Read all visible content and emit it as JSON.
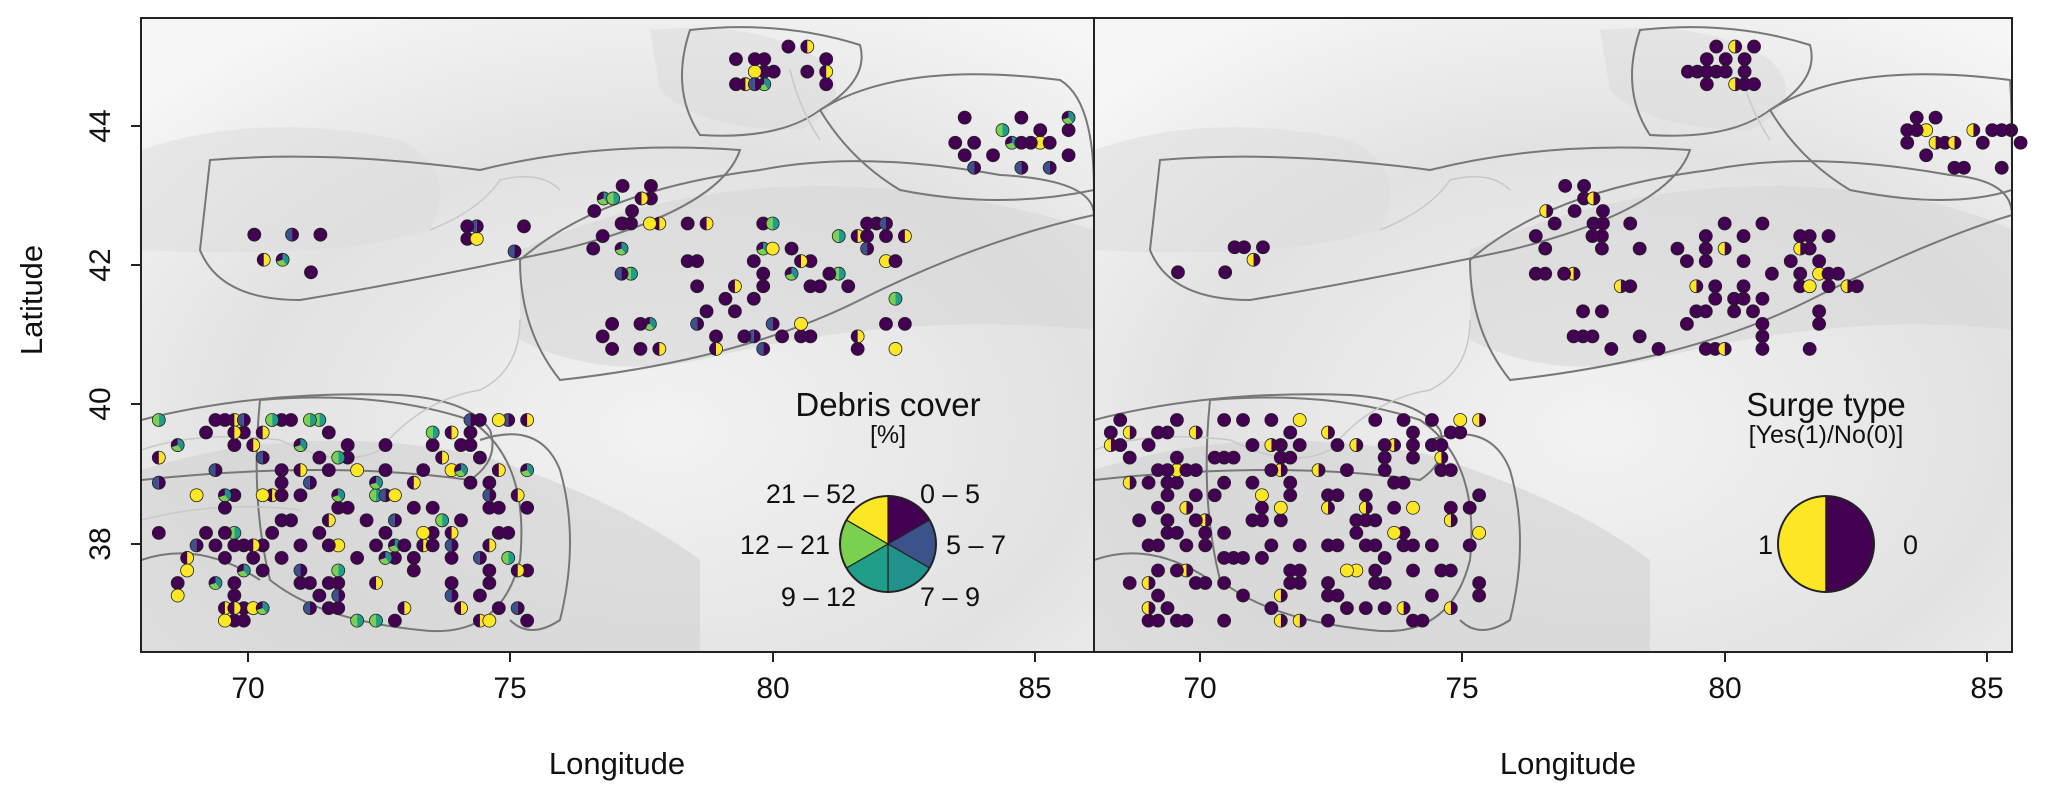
{
  "figure": {
    "xlabel": "Longitude",
    "ylabel": "Latitude",
    "xticks": [
      "70",
      "75",
      "80",
      "85"
    ],
    "yticks": [
      "38",
      "40",
      "42",
      "44"
    ]
  },
  "panels": [
    {
      "legend": {
        "title": "Debris cover",
        "subtitle": "[%]",
        "classes": [
          "0 – 5",
          "5 – 7",
          "7 – 9",
          "9 – 12",
          "12 – 21",
          "21 – 52"
        ],
        "colors": [
          "#440154",
          "#3b528b",
          "#21918c",
          "#1f9e89",
          "#7ad151",
          "#fde725"
        ]
      }
    },
    {
      "legend": {
        "title": "Surge type",
        "subtitle": "[Yes(1)/No(0)]",
        "label_yes": "1",
        "label_no": "0",
        "colors": [
          "#fde725",
          "#440154"
        ]
      }
    }
  ],
  "chart_data": [
    {
      "type": "scatter",
      "title": "Debris cover",
      "xlabel": "Longitude",
      "ylabel": "Latitude",
      "xlim": [
        68,
        86.2
      ],
      "ylim": [
        36.5,
        45.6
      ],
      "series": [
        {
          "name": "0 – 5",
          "color": "#440154"
        },
        {
          "name": "5 – 7",
          "color": "#3b528b"
        },
        {
          "name": "7 – 9",
          "color": "#21918c"
        },
        {
          "name": "9 – 12",
          "color": "#1f9e89"
        },
        {
          "name": "12 – 21",
          "color": "#7ad151"
        },
        {
          "name": "21 – 52",
          "color": "#fde725"
        }
      ],
      "clusters": [
        {
          "lon": [
            79.3,
            80.2
          ],
          "lat": [
            44.6,
            44.9
          ],
          "cells": 10,
          "dominant": "0 – 5"
        },
        {
          "lon": [
            80.3,
            81.0
          ],
          "lat": [
            44.6,
            45.1
          ],
          "cells": 6,
          "dominant": "0 – 5"
        },
        {
          "lon": [
            83.3,
            85.6
          ],
          "lat": [
            43.4,
            44.2
          ],
          "cells": 19,
          "dominant": "0 – 5"
        },
        {
          "lon": [
            69.4,
            71.4
          ],
          "lat": [
            41.9,
            42.4
          ],
          "cells": 6,
          "dominant": "0 – 5"
        },
        {
          "lon": [
            76.6,
            77.6
          ],
          "lat": [
            42.6,
            43.2
          ],
          "cells": 9,
          "dominant": "9 – 12"
        },
        {
          "lon": [
            74.0,
            75.2
          ],
          "lat": [
            42.2,
            42.5
          ],
          "cells": 6,
          "dominant": "0 – 5"
        },
        {
          "lon": [
            76.4,
            82.6
          ],
          "lat": [
            40.8,
            42.6
          ],
          "cells": 70,
          "dominant": "0 – 5"
        },
        {
          "lon": [
            68.3,
            75.4
          ],
          "lat": [
            36.9,
            39.8
          ],
          "cells": 170,
          "dominant": "0 – 5"
        }
      ]
    },
    {
      "type": "scatter",
      "title": "Surge type",
      "xlabel": "Longitude",
      "ylabel": "Latitude",
      "xlim": [
        68,
        86.2
      ],
      "ylim": [
        36.5,
        45.6
      ],
      "series": [
        {
          "name": "1",
          "color": "#fde725"
        },
        {
          "name": "0",
          "color": "#440154"
        }
      ],
      "clusters": [
        {
          "lon": [
            79.3,
            81.0
          ],
          "lat": [
            44.6,
            45.1
          ],
          "cells": 16,
          "surge": "0"
        },
        {
          "lon": [
            83.3,
            85.6
          ],
          "lat": [
            43.4,
            44.2
          ],
          "cells": 19,
          "surge": "0"
        },
        {
          "lon": [
            69.4,
            71.4
          ],
          "lat": [
            41.9,
            42.4
          ],
          "cells": 6,
          "surge": "0"
        },
        {
          "lon": [
            76.6,
            77.6
          ],
          "lat": [
            42.6,
            43.2
          ],
          "cells": 9,
          "surge": "0"
        },
        {
          "lon": [
            76.4,
            82.6
          ],
          "lat": [
            40.8,
            42.6
          ],
          "cells": 70,
          "surge": "0"
        },
        {
          "lon": [
            68.3,
            75.4
          ],
          "lat": [
            36.9,
            39.8
          ],
          "cells": 170,
          "surge": "0"
        }
      ]
    }
  ]
}
